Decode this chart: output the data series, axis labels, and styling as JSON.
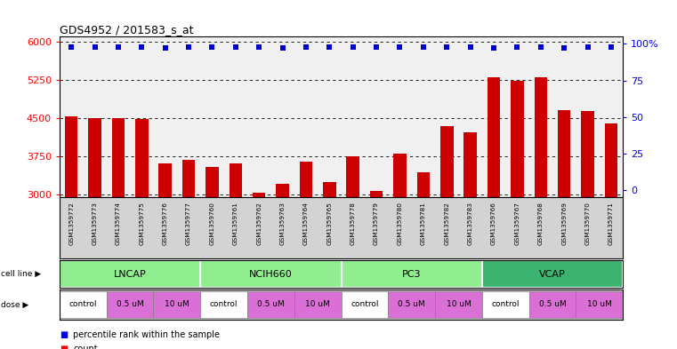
{
  "title": "GDS4952 / 201583_s_at",
  "samples": [
    "GSM1359772",
    "GSM1359773",
    "GSM1359774",
    "GSM1359775",
    "GSM1359776",
    "GSM1359777",
    "GSM1359760",
    "GSM1359761",
    "GSM1359762",
    "GSM1359763",
    "GSM1359764",
    "GSM1359765",
    "GSM1359778",
    "GSM1359779",
    "GSM1359780",
    "GSM1359781",
    "GSM1359782",
    "GSM1359783",
    "GSM1359766",
    "GSM1359767",
    "GSM1359768",
    "GSM1359769",
    "GSM1359770",
    "GSM1359771"
  ],
  "counts": [
    4530,
    4510,
    4500,
    4480,
    3620,
    3680,
    3540,
    3610,
    3040,
    3220,
    3650,
    3250,
    3760,
    3080,
    3800,
    3430,
    4350,
    4230,
    5300,
    5230,
    5310,
    4650,
    4640,
    4400
  ],
  "percentile_ranks": [
    98,
    98,
    98,
    98,
    97,
    98,
    98,
    98,
    98,
    97,
    98,
    98,
    98,
    98,
    98,
    98,
    98,
    98,
    97,
    98,
    98,
    97,
    98,
    98
  ],
  "cell_lines": [
    {
      "name": "LNCAP",
      "start": 0,
      "end": 6
    },
    {
      "name": "NCIH660",
      "start": 6,
      "end": 12
    },
    {
      "name": "PC3",
      "start": 12,
      "end": 18
    },
    {
      "name": "VCAP",
      "start": 18,
      "end": 24
    }
  ],
  "doses": [
    {
      "label": "control",
      "start": 0,
      "end": 2
    },
    {
      "label": "0.5 uM",
      "start": 2,
      "end": 4
    },
    {
      "label": "10 uM",
      "start": 4,
      "end": 6
    },
    {
      "label": "control",
      "start": 6,
      "end": 8
    },
    {
      "label": "0.5 uM",
      "start": 8,
      "end": 10
    },
    {
      "label": "10 uM",
      "start": 10,
      "end": 12
    },
    {
      "label": "control",
      "start": 12,
      "end": 14
    },
    {
      "label": "0.5 uM",
      "start": 14,
      "end": 16
    },
    {
      "label": "10 uM",
      "start": 16,
      "end": 18
    },
    {
      "label": "control",
      "start": 18,
      "end": 20
    },
    {
      "label": "0.5 uM",
      "start": 20,
      "end": 22
    },
    {
      "label": "10 uM",
      "start": 22,
      "end": 24
    }
  ],
  "ylim_left": [
    2950,
    6100
  ],
  "yticks_left": [
    3000,
    3750,
    4500,
    5250,
    6000
  ],
  "ylim_right": [
    -5,
    105
  ],
  "yticks_right": [
    0,
    25,
    50,
    75,
    100
  ],
  "bar_color": "#CC0000",
  "dot_color": "#0000CC",
  "bg_plot": "#F0F0F0",
  "cell_light_color": "#90EE90",
  "cell_dark_color": "#3CB371",
  "dose_control_color": "#FFFFFF",
  "dose_uM_color": "#DA70D6",
  "label_area_color": "#D3D3D3",
  "strip_bg_color": "#D3D3D3"
}
